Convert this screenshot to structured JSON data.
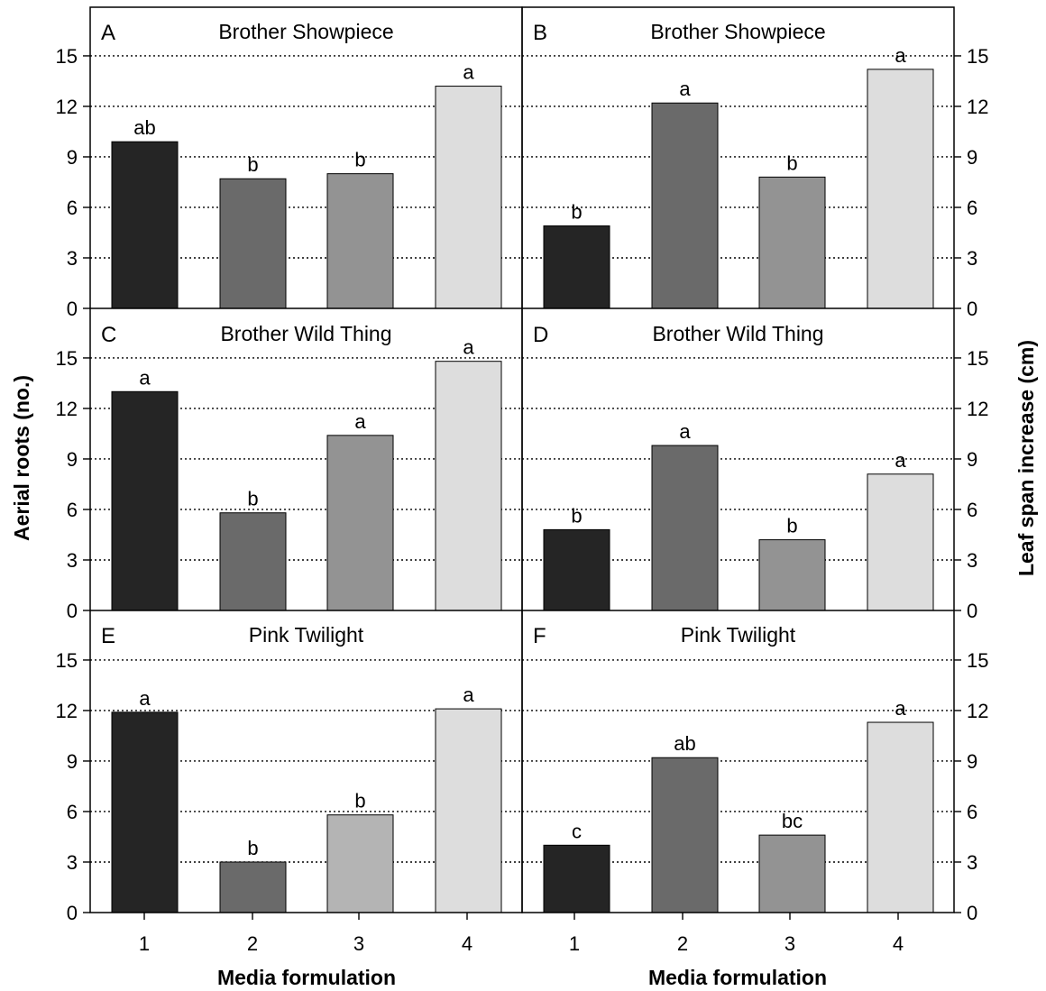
{
  "figure": {
    "ylabel_left": "Aerial roots (no.)",
    "ylabel_right": "Leaf span increase (cm)",
    "xlabel": "Media formulation"
  },
  "chart_data": [
    {
      "panel": "A",
      "type": "bar",
      "title": "Brother Showpiece",
      "categories": [
        "1",
        "2",
        "3",
        "4"
      ],
      "values": [
        9.9,
        7.7,
        8.0,
        13.2
      ],
      "significance": [
        "ab",
        "b",
        "b",
        "a"
      ],
      "ylabel": "Aerial roots (no.)",
      "ylim": [
        0,
        15
      ],
      "yticks": [
        "0",
        "3",
        "6",
        "9",
        "12",
        "15"
      ],
      "grid": "horizontal dotted"
    },
    {
      "panel": "B",
      "type": "bar",
      "title": "Brother Showpiece",
      "categories": [
        "1",
        "2",
        "3",
        "4"
      ],
      "values": [
        4.9,
        12.2,
        7.8,
        14.2
      ],
      "significance": [
        "b",
        "a",
        "b",
        "a"
      ],
      "ylabel": "Leaf span increase (cm)",
      "ylim": [
        0,
        15
      ],
      "yticks": [
        "0",
        "3",
        "6",
        "9",
        "12",
        "15"
      ],
      "grid": "horizontal dotted"
    },
    {
      "panel": "C",
      "type": "bar",
      "title": "Brother Wild Thing",
      "categories": [
        "1",
        "2",
        "3",
        "4"
      ],
      "values": [
        13.0,
        5.8,
        10.4,
        14.8
      ],
      "significance": [
        "a",
        "b",
        "a",
        "a"
      ],
      "ylabel": "Aerial roots (no.)",
      "ylim": [
        0,
        15
      ],
      "yticks": [
        "0",
        "3",
        "6",
        "9",
        "12",
        "15"
      ],
      "grid": "horizontal dotted"
    },
    {
      "panel": "D",
      "type": "bar",
      "title": "Brother Wild Thing",
      "categories": [
        "1",
        "2",
        "3",
        "4"
      ],
      "values": [
        4.8,
        9.8,
        4.2,
        8.1
      ],
      "significance": [
        "b",
        "a",
        "b",
        "a"
      ],
      "ylabel": "Leaf span increase (cm)",
      "ylim": [
        0,
        15
      ],
      "yticks": [
        "0",
        "3",
        "6",
        "9",
        "12",
        "15"
      ],
      "grid": "horizontal dotted"
    },
    {
      "panel": "E",
      "type": "bar",
      "title": "Pink Twilight",
      "categories": [
        "1",
        "2",
        "3",
        "4"
      ],
      "values": [
        11.9,
        3.0,
        5.8,
        12.1
      ],
      "significance": [
        "a",
        "b",
        "b",
        "a"
      ],
      "ylabel": "Aerial roots (no.)",
      "xlabel": "Media formulation",
      "ylim": [
        0,
        15
      ],
      "yticks": [
        "0",
        "3",
        "6",
        "9",
        "12",
        "15"
      ],
      "grid": "horizontal dotted"
    },
    {
      "panel": "F",
      "type": "bar",
      "title": "Pink Twilight",
      "categories": [
        "1",
        "2",
        "3",
        "4"
      ],
      "values": [
        4.0,
        9.2,
        4.6,
        11.3
      ],
      "significance": [
        "c",
        "ab",
        "bc",
        "a"
      ],
      "ylabel": "Leaf span increase (cm)",
      "xlabel": "Media formulation",
      "ylim": [
        0,
        15
      ],
      "yticks": [
        "0",
        "3",
        "6",
        "9",
        "12",
        "15"
      ],
      "grid": "horizontal dotted"
    }
  ],
  "colors": {
    "bar_1": "#252525",
    "bar_2": "#6a6a6a",
    "bar_3": "#939393",
    "bar_3_pink_twilight_aerial": "#b4b4b4",
    "bar_4": "#dddddd",
    "grid": "#000000",
    "frame": "#000000"
  }
}
